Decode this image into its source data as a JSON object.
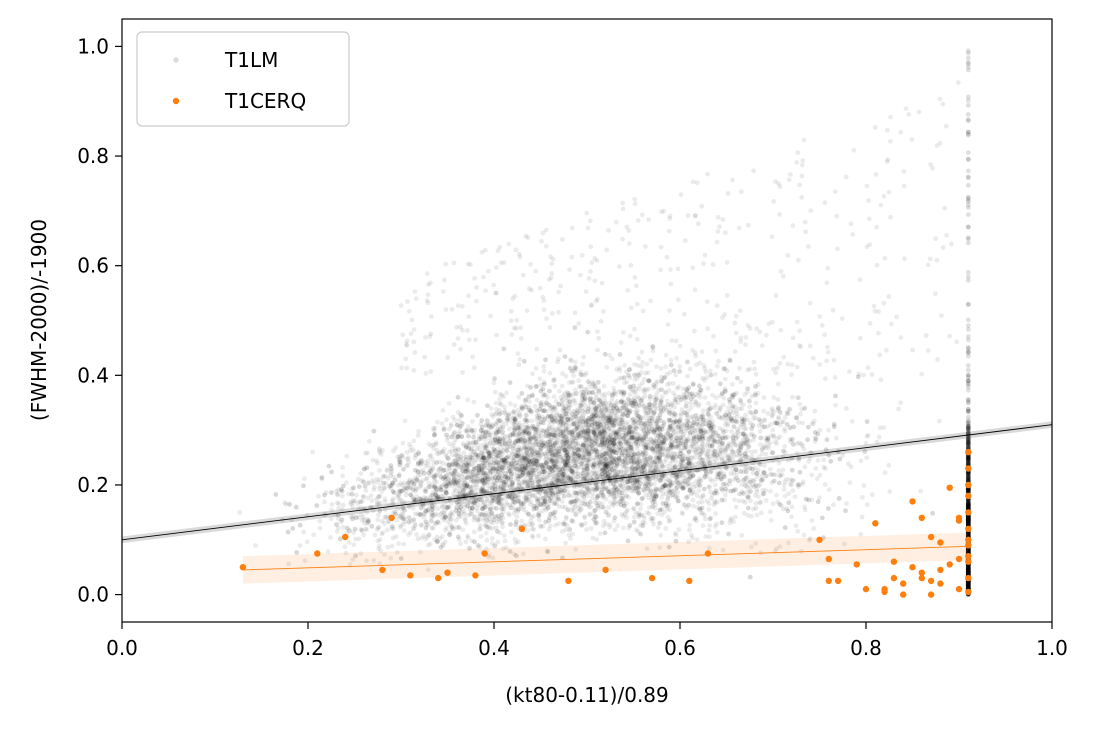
{
  "chart_data": {
    "type": "scatter",
    "xlabel": "(kt80-0.11)/0.89",
    "ylabel": "(FWHM-2000)/-1900",
    "xlim": [
      0.0,
      1.0
    ],
    "ylim": [
      -0.05,
      1.05
    ],
    "xticks": [
      "0.0",
      "0.2",
      "0.4",
      "0.6",
      "0.8",
      "1.0"
    ],
    "yticks": [
      "0.0",
      "0.2",
      "0.4",
      "0.6",
      "0.8",
      "1.0"
    ],
    "grid": false,
    "legend_position": "top-left",
    "series": [
      {
        "name": "T1LM",
        "color": "#000000",
        "marker": "dot-translucent",
        "fit_line": {
          "x": [
            0.0,
            1.0
          ],
          "y": [
            0.1,
            0.31
          ]
        },
        "cloud": {
          "x_range": [
            0.0,
            0.95
          ],
          "y_range": [
            0.0,
            1.0
          ],
          "saturated_x": 0.91
        }
      },
      {
        "name": "T1CERQ",
        "color": "#ff7f0e",
        "marker": "dot",
        "fit_line": {
          "x": [
            0.13,
            0.91
          ],
          "y": [
            0.045,
            0.088
          ]
        },
        "x": [
          0.13,
          0.21,
          0.24,
          0.28,
          0.29,
          0.31,
          0.34,
          0.35,
          0.38,
          0.39,
          0.43,
          0.48,
          0.52,
          0.57,
          0.61,
          0.63,
          0.75,
          0.76,
          0.76,
          0.77,
          0.79,
          0.8,
          0.81,
          0.82,
          0.82,
          0.83,
          0.83,
          0.84,
          0.84,
          0.85,
          0.85,
          0.86,
          0.86,
          0.86,
          0.87,
          0.87,
          0.87,
          0.88,
          0.88,
          0.88,
          0.89,
          0.89,
          0.9,
          0.9,
          0.9,
          0.9,
          0.91,
          0.91,
          0.91,
          0.91,
          0.91,
          0.91,
          0.91,
          0.91,
          0.91,
          0.91,
          0.91,
          0.91
        ],
        "y": [
          0.05,
          0.075,
          0.105,
          0.045,
          0.14,
          0.035,
          0.03,
          0.04,
          0.035,
          0.075,
          0.12,
          0.025,
          0.045,
          0.03,
          0.025,
          0.075,
          0.1,
          0.065,
          0.025,
          0.025,
          0.055,
          0.01,
          0.13,
          0.005,
          0.01,
          0.06,
          0.03,
          0.0,
          0.02,
          0.17,
          0.05,
          0.04,
          0.14,
          0.03,
          0.105,
          0.025,
          0.0,
          0.095,
          0.045,
          0.02,
          0.195,
          0.055,
          0.14,
          0.135,
          0.065,
          0.01,
          0.005,
          0.26,
          0.23,
          0.2,
          0.18,
          0.15,
          0.12,
          0.1,
          0.09,
          0.07,
          0.06,
          0.03
        ]
      }
    ]
  }
}
